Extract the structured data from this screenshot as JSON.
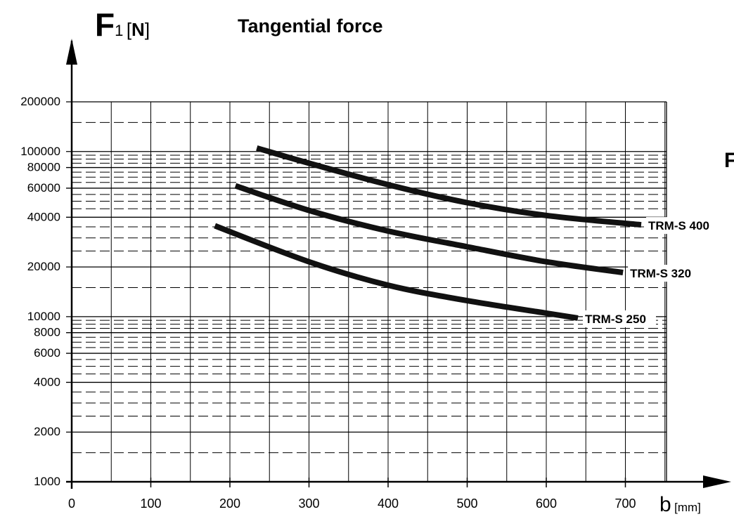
{
  "chart_data": {
    "type": "line",
    "title": "Tangential force",
    "ylabel": {
      "symbol": "F",
      "subscript": "1",
      "unit_open": "[",
      "unit": "N",
      "unit_close": "]"
    },
    "xlabel": {
      "symbol": "b",
      "unit": "[mm]"
    },
    "edge_text": "F",
    "y_scale": "log",
    "ylim": [
      1000,
      200000
    ],
    "xlim": [
      0,
      750
    ],
    "grid": true,
    "x_ticks": [
      0,
      100,
      200,
      300,
      400,
      500,
      600,
      700
    ],
    "x_tick_labels": [
      "0",
      "100",
      "200",
      "300",
      "400",
      "500",
      "600",
      "700"
    ],
    "y_ticks": [
      1000,
      2000,
      4000,
      6000,
      8000,
      10000,
      20000,
      40000,
      60000,
      80000,
      100000,
      200000
    ],
    "y_tick_labels": [
      "1000",
      "2000",
      "4000",
      "6000",
      "8000",
      "10000",
      "20000",
      "40000",
      "60000",
      "80000",
      "100000",
      "200000"
    ],
    "series": [
      {
        "name": "TRM-S 400",
        "x": [
          234,
          300,
          400,
          500,
          600,
          720
        ],
        "y": [
          105000,
          85000,
          63000,
          49000,
          41000,
          36000
        ]
      },
      {
        "name": "TRM-S 320",
        "x": [
          207,
          300,
          400,
          500,
          600,
          697
        ],
        "y": [
          62000,
          44000,
          33000,
          26500,
          21500,
          18500
        ]
      },
      {
        "name": "TRM-S 250",
        "x": [
          181,
          300,
          400,
          500,
          600,
          640
        ],
        "y": [
          35500,
          21500,
          15500,
          12500,
          10500,
          9800
        ]
      }
    ]
  }
}
